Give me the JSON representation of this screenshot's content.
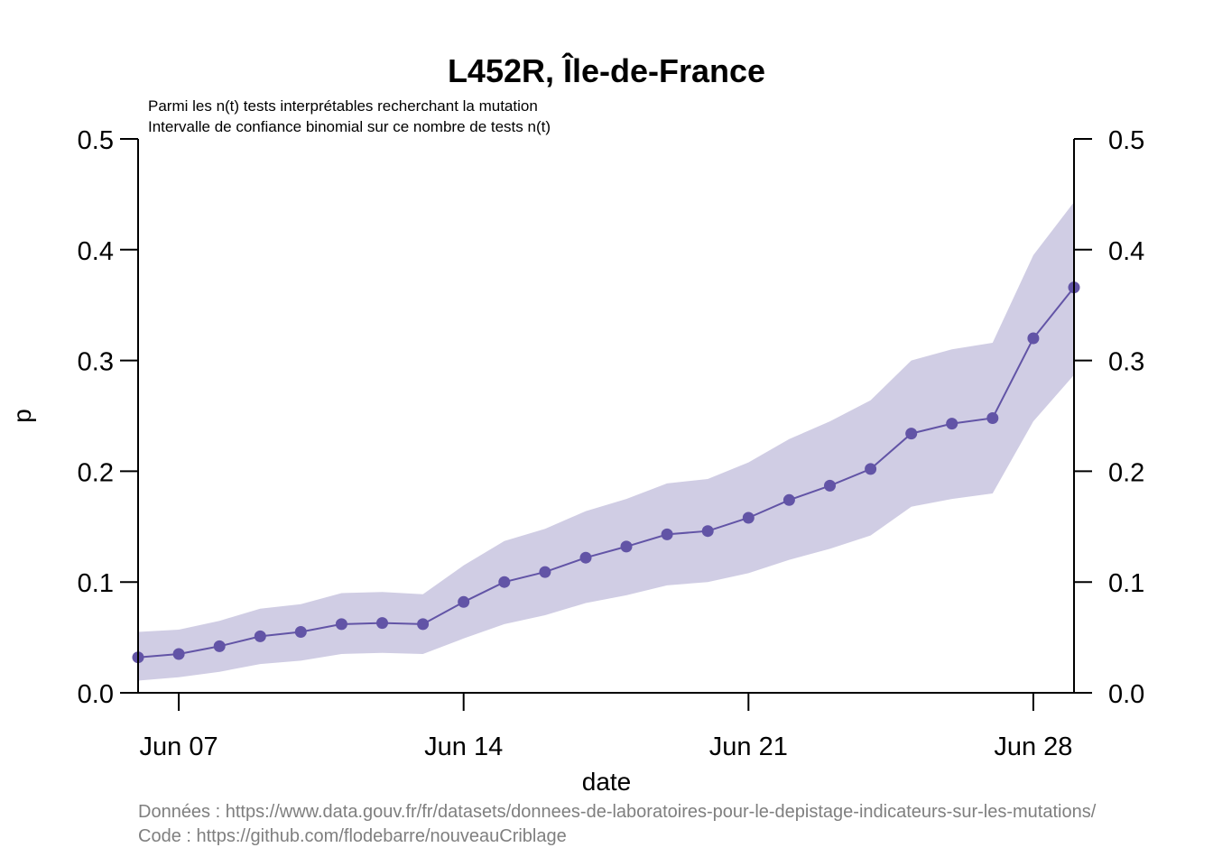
{
  "chart_data": {
    "type": "line",
    "title": "L452R, Île-de-France",
    "subtitle_lines": [
      "Parmi les n(t) tests interprétables recherchant la mutation",
      "Intervalle de confiance binomial sur ce nombre de tests n(t)"
    ],
    "xlabel": "date",
    "ylabel": "p",
    "ylim": [
      0,
      0.5
    ],
    "y_ticks": [
      "0.0",
      "0.1",
      "0.2",
      "0.3",
      "0.4",
      "0.5"
    ],
    "x_ticks": [
      {
        "date": "2021-06-07",
        "label": "Jun 07"
      },
      {
        "date": "2021-06-14",
        "label": "Jun 14"
      },
      {
        "date": "2021-06-21",
        "label": "Jun 21"
      },
      {
        "date": "2021-06-28",
        "label": "Jun 28"
      }
    ],
    "xlim": [
      "2021-06-06",
      "2021-06-29"
    ],
    "colors": {
      "line": "#6254A6",
      "band": "#D0CDE4",
      "axis": "#000000",
      "caption": "#7F7F7F"
    },
    "series": [
      {
        "x": [
          "2021-06-06",
          "2021-06-07",
          "2021-06-08",
          "2021-06-09",
          "2021-06-10",
          "2021-06-11",
          "2021-06-12",
          "2021-06-13",
          "2021-06-14",
          "2021-06-15",
          "2021-06-16",
          "2021-06-17",
          "2021-06-18",
          "2021-06-19",
          "2021-06-20",
          "2021-06-21",
          "2021-06-22",
          "2021-06-23",
          "2021-06-24",
          "2021-06-25",
          "2021-06-26",
          "2021-06-27",
          "2021-06-28",
          "2021-06-29"
        ],
        "values": [
          0.032,
          0.035,
          0.042,
          0.051,
          0.055,
          0.062,
          0.063,
          0.062,
          0.082,
          0.1,
          0.109,
          0.122,
          0.132,
          0.143,
          0.146,
          0.158,
          0.174,
          0.187,
          0.202,
          0.234,
          0.243,
          0.248,
          0.32,
          0.366
        ],
        "lower": [
          0.011,
          0.014,
          0.019,
          0.026,
          0.029,
          0.035,
          0.036,
          0.035,
          0.049,
          0.062,
          0.07,
          0.081,
          0.088,
          0.097,
          0.1,
          0.108,
          0.12,
          0.13,
          0.142,
          0.168,
          0.175,
          0.18,
          0.245,
          0.287
        ],
        "upper": [
          0.055,
          0.057,
          0.065,
          0.076,
          0.08,
          0.09,
          0.091,
          0.089,
          0.115,
          0.137,
          0.148,
          0.164,
          0.175,
          0.189,
          0.193,
          0.208,
          0.229,
          0.245,
          0.264,
          0.3,
          0.31,
          0.316,
          0.395,
          0.443
        ]
      }
    ]
  },
  "captions": [
    "Données : https://www.data.gouv.fr/fr/datasets/donnees-de-laboratoires-pour-le-depistage-indicateurs-sur-les-mutations/",
    "Code : https://github.com/flodebarre/nouveauCriblage"
  ]
}
